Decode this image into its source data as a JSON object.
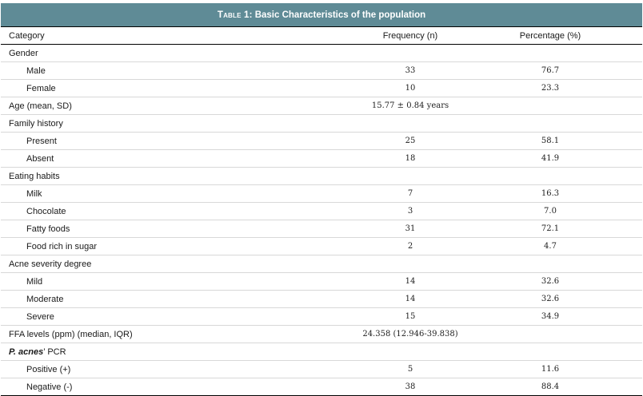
{
  "table": {
    "label": "Table 1:",
    "title": "Basic Characteristics of the population",
    "headers": [
      "Category",
      "Frequency (n)",
      "Percentage (%)"
    ],
    "rows": [
      {
        "type": "group",
        "label": "Gender",
        "freq": "",
        "pct": ""
      },
      {
        "type": "sub",
        "label": "Male",
        "freq": "33",
        "pct": "76.7"
      },
      {
        "type": "sub",
        "label": "Female",
        "freq": "10",
        "pct": "23.3"
      },
      {
        "type": "group",
        "label": "Age (mean, SD)",
        "freq": "15.77 ± 0.84 years",
        "pct": ""
      },
      {
        "type": "group",
        "label": "Family history",
        "freq": "",
        "pct": ""
      },
      {
        "type": "sub",
        "label": "Present",
        "freq": "25",
        "pct": "58.1"
      },
      {
        "type": "sub",
        "label": "Absent",
        "freq": "18",
        "pct": "41.9"
      },
      {
        "type": "group",
        "label": "Eating habits",
        "freq": "",
        "pct": ""
      },
      {
        "type": "sub",
        "label": "Milk",
        "freq": "7",
        "pct": "16.3"
      },
      {
        "type": "sub",
        "label": "Chocolate",
        "freq": "3",
        "pct": "7.0"
      },
      {
        "type": "sub",
        "label": "Fatty foods",
        "freq": "31",
        "pct": "72.1"
      },
      {
        "type": "sub",
        "label": "Food rich in sugar",
        "freq": "2",
        "pct": "4.7"
      },
      {
        "type": "group",
        "label": "Acne severity degree",
        "freq": "",
        "pct": ""
      },
      {
        "type": "sub",
        "label": "Mild",
        "freq": "14",
        "pct": "32.6"
      },
      {
        "type": "sub",
        "label": "Moderate",
        "freq": "14",
        "pct": "32.6"
      },
      {
        "type": "sub",
        "label": "Severe",
        "freq": "15",
        "pct": "34.9"
      },
      {
        "type": "group",
        "label": "FFA levels (ppm) (median, IQR)",
        "freq": "24.358 (12.946-39.838)",
        "pct": ""
      },
      {
        "type": "group",
        "label_italic": "P. acnes",
        "label": "’ PCR",
        "freq": "",
        "pct": ""
      },
      {
        "type": "sub",
        "label": "Positive (+)",
        "freq": "5",
        "pct": "11.6"
      },
      {
        "type": "sub",
        "label": "Negative (-)",
        "freq": "38",
        "pct": "88.4"
      }
    ]
  }
}
